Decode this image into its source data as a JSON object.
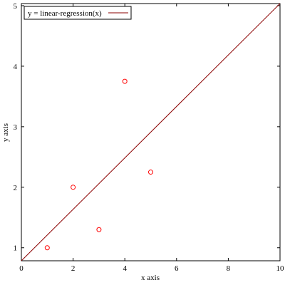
{
  "chart_data": {
    "type": "scatter",
    "xlabel": "x axis",
    "ylabel": "y axis",
    "xlim": [
      0,
      10
    ],
    "ylim": [
      0.785,
      5.035
    ],
    "xticks": [
      0,
      2,
      4,
      6,
      8,
      10
    ],
    "yticks": [
      1,
      2,
      3,
      4,
      5
    ],
    "legend": "top-left",
    "series": [
      {
        "type": "scatter",
        "color": "#ff0000",
        "x": [
          1,
          2,
          3,
          4,
          5
        ],
        "values": [
          1,
          2,
          1.3,
          3.75,
          2.25
        ]
      },
      {
        "type": "line",
        "name": "y = linear-regression(x)",
        "color": "#8b0000",
        "x": [
          0,
          10
        ],
        "values": [
          0.785,
          5.035
        ]
      }
    ]
  }
}
